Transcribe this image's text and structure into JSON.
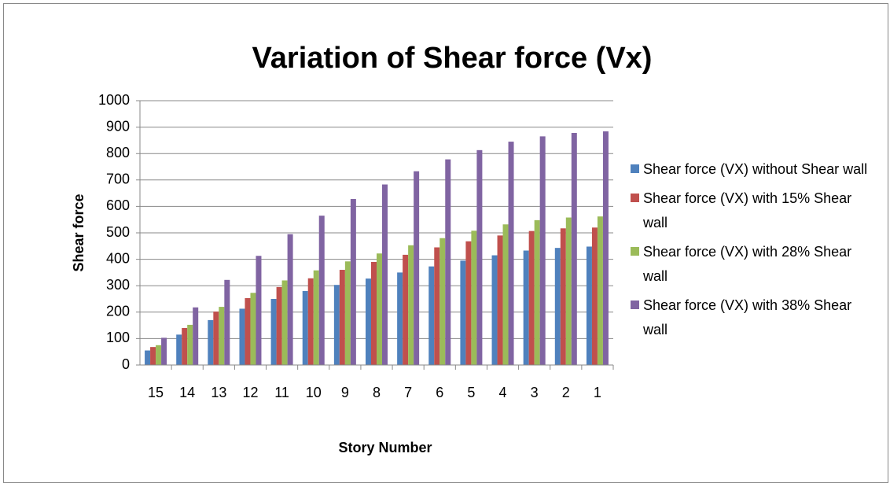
{
  "chart_data": {
    "type": "bar",
    "title": "Variation of Shear force (Vx)",
    "x_label": "Story Number",
    "y_label": "Shear force",
    "categories": [
      "15",
      "14",
      "13",
      "12",
      "11",
      "10",
      "9",
      "8",
      "7",
      "6",
      "5",
      "4",
      "3",
      "2",
      "1"
    ],
    "series": [
      {
        "name": "Shear force (VX) without Shear wall",
        "color": "#4f81bd",
        "values": [
          55,
          115,
          170,
          213,
          250,
          280,
          303,
          327,
          350,
          373,
          395,
          415,
          433,
          443,
          448
        ]
      },
      {
        "name": "Shear force (VX) with 15% Shear wall",
        "color": "#c0504d",
        "values": [
          68,
          140,
          202,
          253,
          295,
          328,
          360,
          390,
          417,
          445,
          468,
          490,
          507,
          517,
          520
        ]
      },
      {
        "name": "Shear force (VX) with 28% Shear wall",
        "color": "#9bbb59",
        "values": [
          75,
          152,
          220,
          273,
          320,
          358,
          392,
          422,
          453,
          480,
          508,
          532,
          548,
          558,
          562
        ]
      },
      {
        "name": "Shear force (VX) with 38% Shear wall",
        "color": "#8064a2",
        "values": [
          103,
          218,
          322,
          413,
          495,
          565,
          628,
          683,
          733,
          778,
          813,
          845,
          865,
          878,
          884
        ]
      }
    ],
    "ylim": [
      0,
      1000
    ],
    "yticks": [
      0,
      100,
      200,
      300,
      400,
      500,
      600,
      700,
      800,
      900,
      1000
    ],
    "grid": true,
    "legend": "right"
  }
}
